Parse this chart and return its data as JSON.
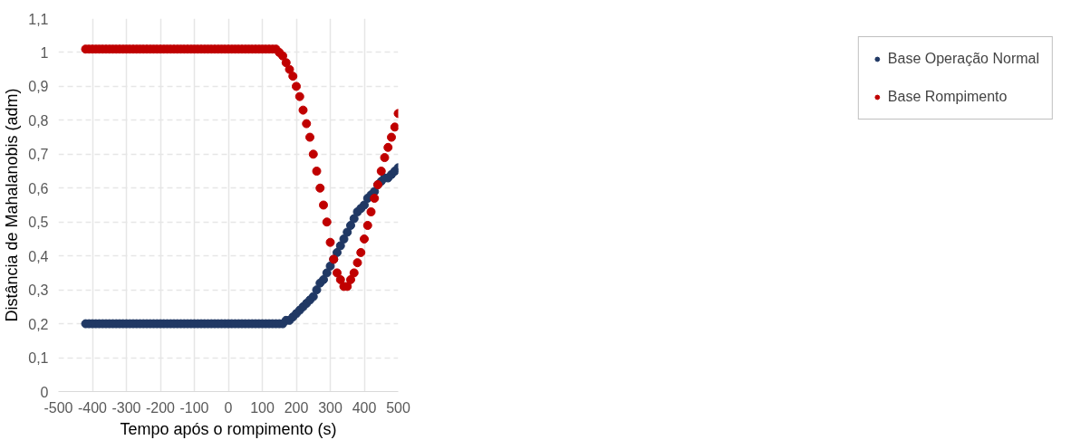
{
  "chart_data": {
    "type": "scatter",
    "xlabel": "Tempo após o rompimento (s)",
    "ylabel": "Distância de Mahalanobis (adm)",
    "x": [
      -420,
      -410,
      -400,
      -390,
      -380,
      -370,
      -360,
      -350,
      -340,
      -330,
      -320,
      -310,
      -300,
      -290,
      -280,
      -270,
      -260,
      -250,
      -240,
      -230,
      -220,
      -210,
      -200,
      -190,
      -180,
      -170,
      -160,
      -150,
      -140,
      -130,
      -120,
      -110,
      -100,
      -90,
      -80,
      -70,
      -60,
      -50,
      -40,
      -30,
      -20,
      -10,
      0,
      10,
      20,
      30,
      40,
      50,
      60,
      70,
      80,
      90,
      100,
      110,
      120,
      130,
      140,
      150,
      160,
      170,
      180,
      190,
      200,
      210,
      220,
      230,
      240,
      250,
      260,
      270,
      280,
      290,
      300,
      310,
      320,
      330,
      340,
      350,
      360,
      370,
      380,
      390,
      400,
      410,
      420,
      430,
      440,
      450,
      460,
      470,
      480,
      490,
      500
    ],
    "series": [
      {
        "name": "Base Operação Normal",
        "color": "#203864",
        "values": [
          0.2,
          0.2,
          0.2,
          0.2,
          0.2,
          0.2,
          0.2,
          0.2,
          0.2,
          0.2,
          0.2,
          0.2,
          0.2,
          0.2,
          0.2,
          0.2,
          0.2,
          0.2,
          0.2,
          0.2,
          0.2,
          0.2,
          0.2,
          0.2,
          0.2,
          0.2,
          0.2,
          0.2,
          0.2,
          0.2,
          0.2,
          0.2,
          0.2,
          0.2,
          0.2,
          0.2,
          0.2,
          0.2,
          0.2,
          0.2,
          0.2,
          0.2,
          0.2,
          0.2,
          0.2,
          0.2,
          0.2,
          0.2,
          0.2,
          0.2,
          0.2,
          0.2,
          0.2,
          0.2,
          0.2,
          0.2,
          0.2,
          0.2,
          0.2,
          0.21,
          0.21,
          0.22,
          0.23,
          0.24,
          0.25,
          0.26,
          0.27,
          0.28,
          0.3,
          0.32,
          0.33,
          0.35,
          0.37,
          0.39,
          0.41,
          0.43,
          0.45,
          0.47,
          0.49,
          0.51,
          0.53,
          0.54,
          0.55,
          0.57,
          0.58,
          0.59,
          0.61,
          0.62,
          0.63,
          0.63,
          0.64,
          0.65,
          0.66
        ]
      },
      {
        "name": "Base Rompimento",
        "color": "#c00000",
        "values": [
          1.01,
          1.01,
          1.01,
          1.01,
          1.01,
          1.01,
          1.01,
          1.01,
          1.01,
          1.01,
          1.01,
          1.01,
          1.01,
          1.01,
          1.01,
          1.01,
          1.01,
          1.01,
          1.01,
          1.01,
          1.01,
          1.01,
          1.01,
          1.01,
          1.01,
          1.01,
          1.01,
          1.01,
          1.01,
          1.01,
          1.01,
          1.01,
          1.01,
          1.01,
          1.01,
          1.01,
          1.01,
          1.01,
          1.01,
          1.01,
          1.01,
          1.01,
          1.01,
          1.01,
          1.01,
          1.01,
          1.01,
          1.01,
          1.01,
          1.01,
          1.01,
          1.01,
          1.01,
          1.01,
          1.01,
          1.01,
          1.01,
          1.0,
          0.99,
          0.97,
          0.95,
          0.93,
          0.9,
          0.87,
          0.83,
          0.79,
          0.75,
          0.7,
          0.65,
          0.6,
          0.55,
          0.5,
          0.44,
          0.39,
          0.35,
          0.33,
          0.31,
          0.31,
          0.33,
          0.35,
          0.38,
          0.41,
          0.45,
          0.49,
          0.53,
          0.57,
          0.61,
          0.65,
          0.69,
          0.72,
          0.75,
          0.78,
          0.82
        ]
      }
    ],
    "xlim": [
      -500,
      500
    ],
    "xticks": [
      -500,
      -400,
      -300,
      -200,
      -100,
      0,
      100,
      200,
      300,
      400,
      500
    ],
    "ylim": [
      0,
      1.1
    ],
    "yticks": [
      0,
      {
        "value": 0.1,
        "label": "0,1"
      },
      {
        "value": 0.2,
        "label": "0,2"
      },
      {
        "value": 0.3,
        "label": "0,3"
      },
      {
        "value": 0.4,
        "label": "0,4"
      },
      {
        "value": 0.5,
        "label": "0,5"
      },
      {
        "value": 0.6,
        "label": "0,6"
      },
      {
        "value": 0.7,
        "label": "0,7"
      },
      {
        "value": 0.8,
        "label": "0,8"
      },
      {
        "value": 0.9,
        "label": "0,9"
      },
      1,
      {
        "value": 1.1,
        "label": "1,1"
      }
    ],
    "grid": true,
    "legend": "right",
    "marker": "circle"
  }
}
